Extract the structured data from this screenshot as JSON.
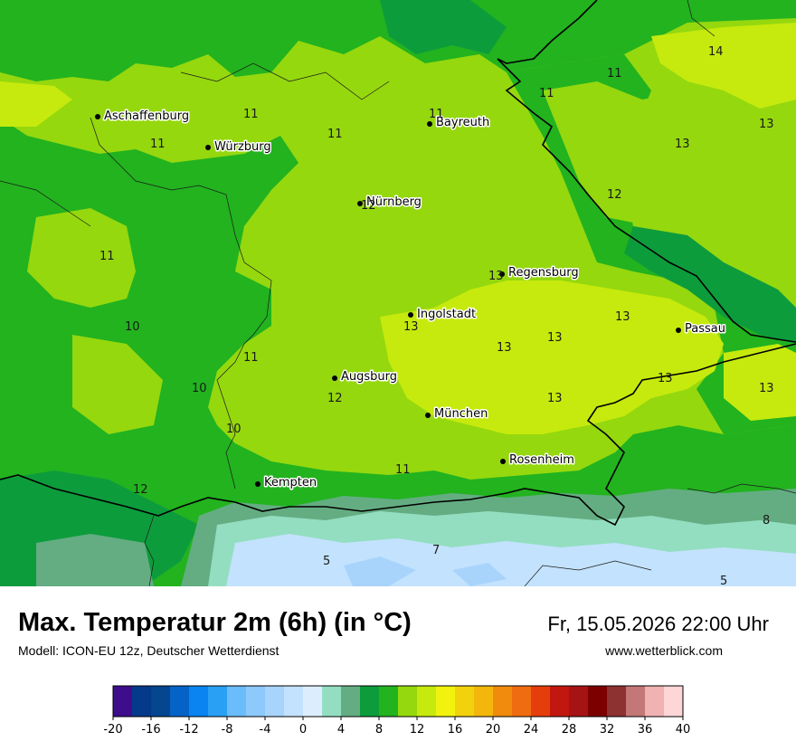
{
  "title": "Max. Temperatur 2m (6h) (in °C)",
  "subtitle": "Modell: ICON-EU 12z, Deutscher Wetterdienst",
  "datetime": "Fr, 15.05.2026 22:00 Uhr",
  "website": "www.wetterblick.com",
  "cities": [
    {
      "name": "Aschaffenburg"
    },
    {
      "name": "Würzburg"
    },
    {
      "name": "Bayreuth"
    },
    {
      "name": "Nürnberg"
    },
    {
      "name": "Regensburg"
    },
    {
      "name": "Ingolstadt"
    },
    {
      "name": "Passau"
    },
    {
      "name": "Augsburg"
    },
    {
      "name": "München"
    },
    {
      "name": "Rosenheim"
    },
    {
      "name": "Kempten"
    }
  ],
  "values": [
    "14",
    "11",
    "11",
    "11",
    "13",
    "11",
    "11",
    "11",
    "13",
    "12",
    "12",
    "11",
    "13",
    "13",
    "10",
    "13",
    "13",
    "13",
    "11",
    "13",
    "10",
    "12",
    "13",
    "10",
    "11",
    "12",
    "8",
    "7",
    "5",
    "5"
  ],
  "legend": {
    "ticks": [
      "-20",
      "-16",
      "-12",
      "-8",
      "-4",
      "0",
      "4",
      "8",
      "12",
      "16",
      "20",
      "24",
      "28",
      "32",
      "36",
      "40"
    ],
    "colors": [
      "#3d0d8c",
      "#05398a",
      "#04468f",
      "#0563c8",
      "#0a84f0",
      "#2aa0f5",
      "#6bbcfa",
      "#8ec9fb",
      "#a8d4fc",
      "#c3e2fd",
      "#dceefe",
      "#93dec1",
      "#64ad82",
      "#0d9c3c",
      "#22b31f",
      "#95d80e",
      "#c6ea0d",
      "#f1f30e",
      "#f2d20c",
      "#f3b70c",
      "#f08b0d",
      "#ef6c10",
      "#e63d0d",
      "#c2170f",
      "#a51314",
      "#7c0000",
      "#8e3131",
      "#c47777",
      "#f0b2b2",
      "#fdd6d6"
    ]
  }
}
